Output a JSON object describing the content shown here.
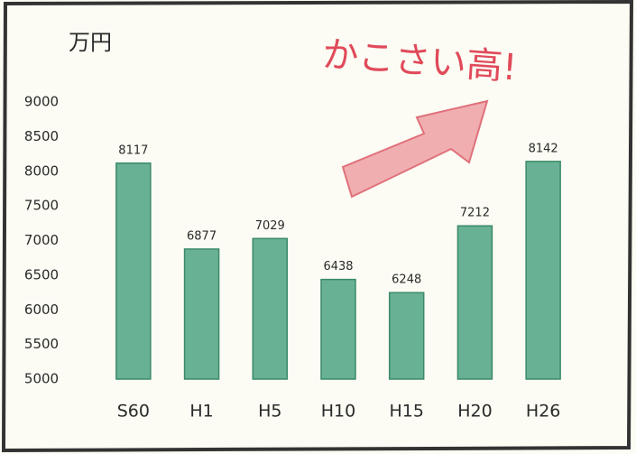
{
  "chart_data": {
    "type": "bar",
    "title": "万円",
    "annotation": "かこさい高!",
    "categories": [
      "S60",
      "H1",
      "H5",
      "H10",
      "H15",
      "H20",
      "H26"
    ],
    "values": [
      8117,
      6877,
      7029,
      6438,
      6248,
      7212,
      8142
    ],
    "color": "#4fa383",
    "ylim": [
      5000,
      9000
    ],
    "yticks": [
      5000,
      5500,
      6000,
      6500,
      7000,
      7500,
      8000,
      8500,
      9000
    ],
    "grid": false
  }
}
